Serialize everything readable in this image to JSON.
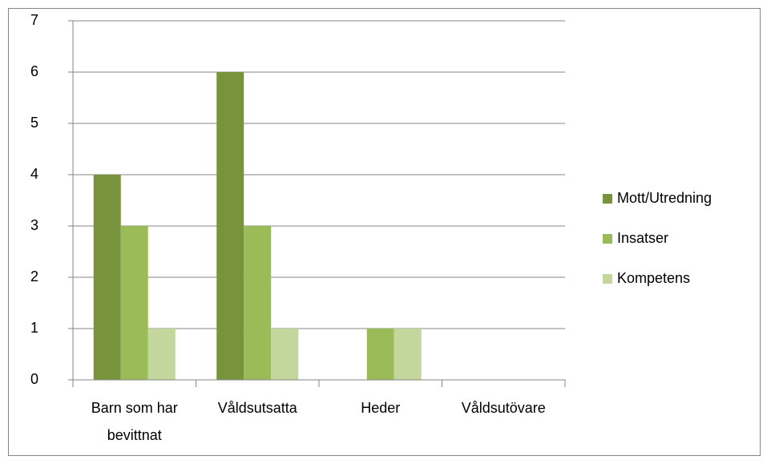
{
  "chart_data": {
    "type": "bar",
    "categories": [
      "Barn som har bevittnat",
      "Våldsutsatta",
      "Heder",
      "Våldsutövare"
    ],
    "series": [
      {
        "name": "Mott/Utredning",
        "color": "#77933c",
        "values": [
          4,
          6,
          0,
          0
        ]
      },
      {
        "name": "Insatser",
        "color": "#9bbb59",
        "values": [
          3,
          3,
          1,
          0
        ]
      },
      {
        "name": "Kompetens",
        "color": "#c3d69b",
        "values": [
          1,
          1,
          1,
          0
        ]
      }
    ],
    "ylim": [
      0,
      7
    ],
    "yticks": [
      0,
      1,
      2,
      3,
      4,
      5,
      6,
      7
    ],
    "grid": true,
    "legend": "right"
  }
}
